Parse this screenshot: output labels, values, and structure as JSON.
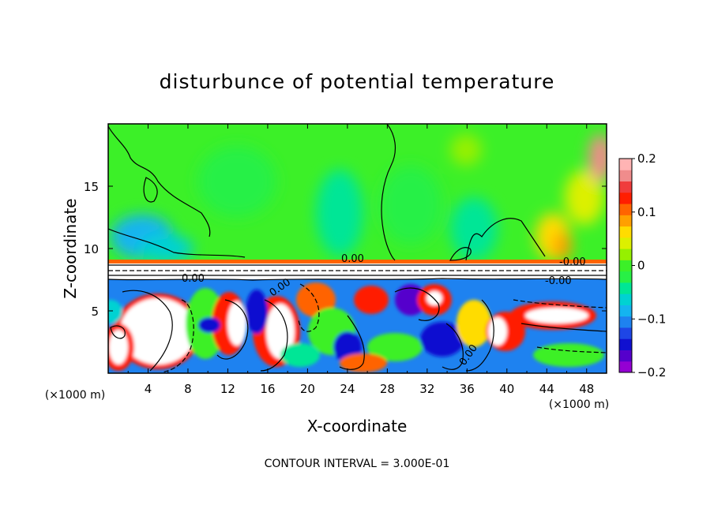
{
  "chart_data": {
    "type": "heatmap",
    "title": "disturbunce of potential temperature",
    "xlabel": "X-coordinate",
    "ylabel": "Z-coordinate",
    "x_unit_left": "(×1000 m)",
    "x_unit_right": "(×1000 m)",
    "xlim": [
      0,
      50
    ],
    "ylim": [
      0,
      20
    ],
    "x_ticks": [
      "4",
      "8",
      "12",
      "16",
      "20",
      "24",
      "28",
      "32",
      "36",
      "40",
      "44",
      "48"
    ],
    "x_tick_values": [
      4,
      8,
      12,
      16,
      20,
      24,
      28,
      32,
      36,
      40,
      44,
      48
    ],
    "y_ticks": [
      "5",
      "10",
      "15"
    ],
    "y_tick_values": [
      5,
      10,
      15
    ],
    "colorbar": {
      "range": [
        -0.2,
        0.2
      ],
      "tick_labels": [
        "0.2",
        "0.1",
        "0",
        "−0.1",
        "−0.2"
      ],
      "tick_values": [
        0.2,
        0.1,
        0,
        -0.1,
        -0.2
      ],
      "colors": [
        "#9400d3",
        "#5500cc",
        "#1010d0",
        "#1e46e6",
        "#1e82f0",
        "#14b4f0",
        "#00d2d2",
        "#00e696",
        "#28f046",
        "#3cf028",
        "#96f000",
        "#dcf000",
        "#ffdc00",
        "#ffa000",
        "#ff6400",
        "#ff1e00",
        "#f03c3c",
        "#f08c8c",
        "#ffb4b4"
      ]
    },
    "contour_labels": [
      "0.00",
      "0.00",
      "0.00",
      "-0.00",
      "0.00",
      "-0.00"
    ],
    "inversion_level_z": 8.2
  },
  "annotation": {
    "contour_interval": "CONTOUR INTERVAL = 3.000E-01"
  }
}
